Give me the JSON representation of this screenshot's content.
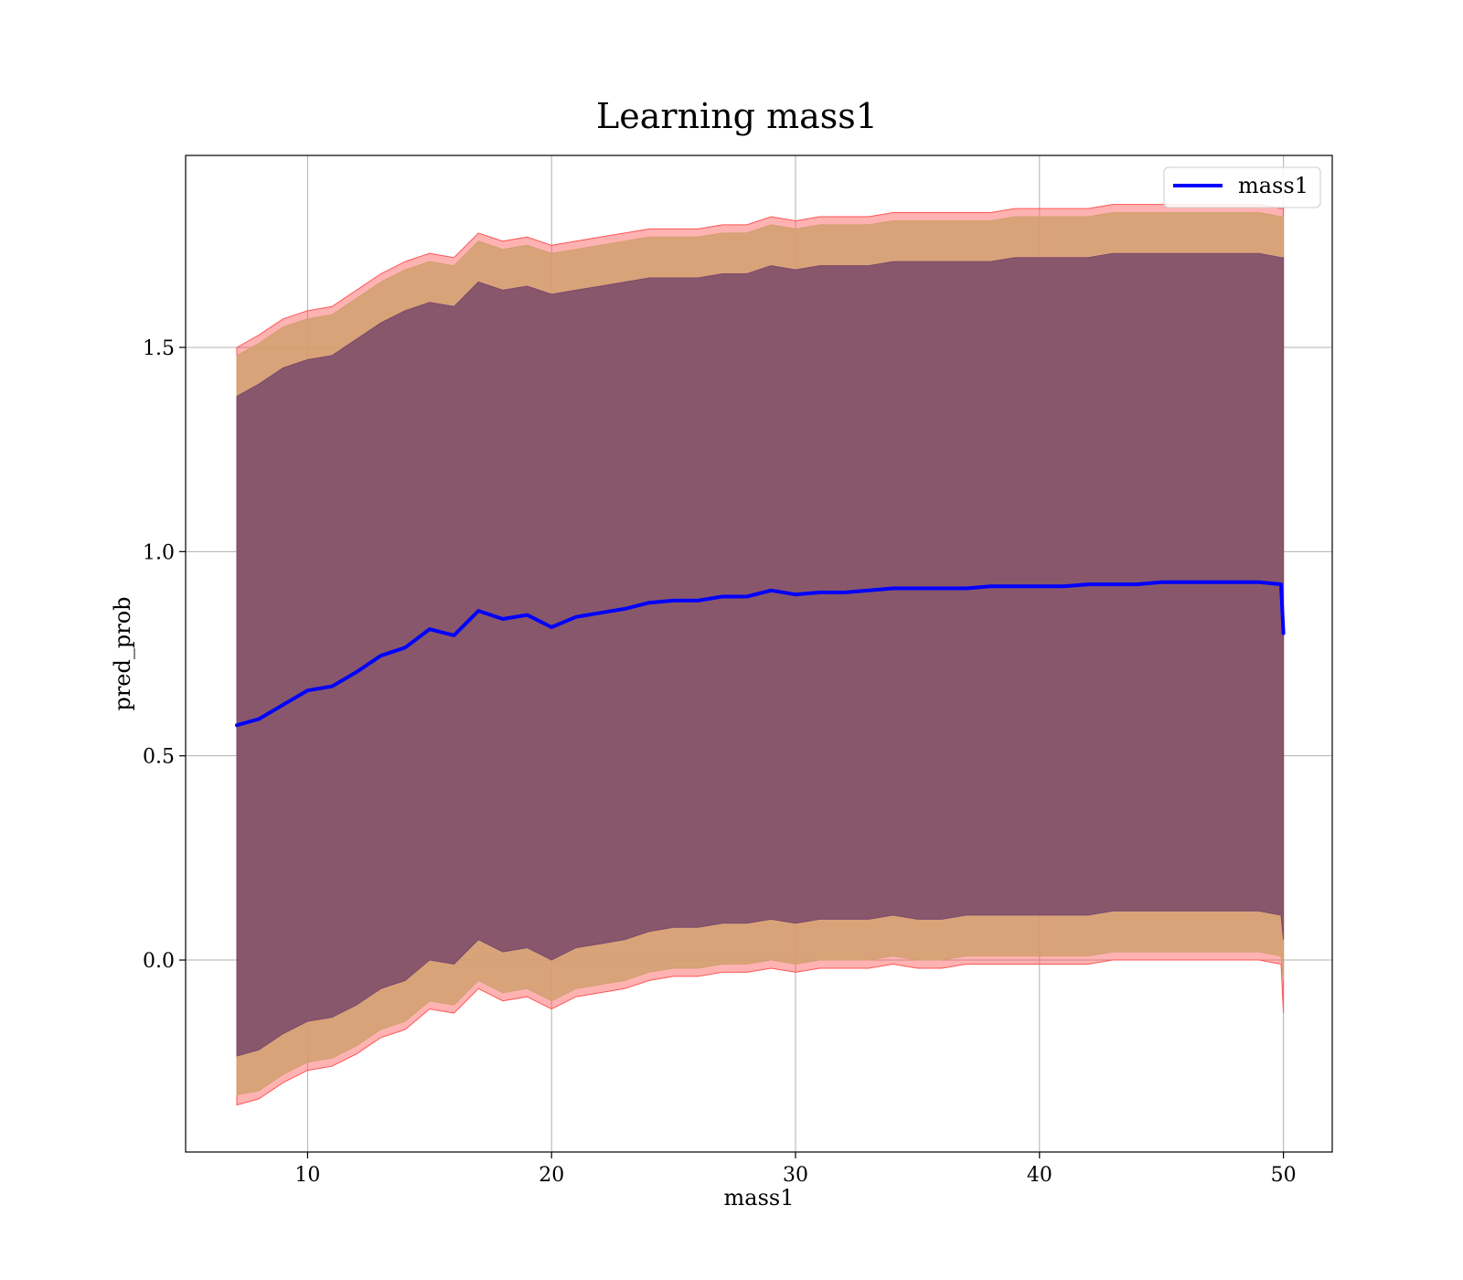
{
  "chart_data": {
    "type": "line",
    "title": "Learning mass1",
    "xlabel": "mass1",
    "ylabel": "pred_prob",
    "xlim": [
      5,
      52
    ],
    "ylim": [
      -0.47,
      1.97
    ],
    "grid": true,
    "legend_position": "upper right",
    "xticks": [
      10,
      20,
      30,
      40,
      50
    ],
    "xtick_labels": [
      "10",
      "20",
      "30",
      "40",
      "50"
    ],
    "yticks": [
      0.0,
      0.5,
      1.0,
      1.5
    ],
    "ytick_labels": [
      "0.0",
      "0.5",
      "1.0",
      "1.5"
    ],
    "x": [
      7.1,
      8,
      9,
      10,
      11,
      12,
      13,
      14,
      15,
      16,
      17,
      18,
      19,
      20,
      21,
      22,
      23,
      24,
      25,
      26,
      27,
      28,
      29,
      30,
      31,
      32,
      33,
      34,
      35,
      36,
      37,
      38,
      39,
      40,
      41,
      42,
      43,
      44,
      45,
      46,
      47,
      48,
      49,
      49.9,
      50
    ],
    "series": [
      {
        "name": "mass1",
        "color": "#0000ff",
        "values": [
          0.575,
          0.59,
          0.625,
          0.66,
          0.67,
          0.705,
          0.745,
          0.765,
          0.81,
          0.795,
          0.855,
          0.835,
          0.845,
          0.815,
          0.84,
          0.85,
          0.86,
          0.875,
          0.88,
          0.88,
          0.89,
          0.89,
          0.905,
          0.895,
          0.9,
          0.9,
          0.905,
          0.91,
          0.91,
          0.91,
          0.91,
          0.915,
          0.915,
          0.915,
          0.915,
          0.92,
          0.92,
          0.92,
          0.925,
          0.925,
          0.925,
          0.925,
          0.925,
          0.92,
          0.8
        ]
      }
    ],
    "bands": [
      {
        "color": "#ff5555",
        "upper": [
          1.5,
          1.53,
          1.57,
          1.59,
          1.6,
          1.64,
          1.68,
          1.71,
          1.73,
          1.72,
          1.78,
          1.76,
          1.77,
          1.75,
          1.76,
          1.77,
          1.78,
          1.79,
          1.79,
          1.79,
          1.8,
          1.8,
          1.82,
          1.81,
          1.82,
          1.82,
          1.82,
          1.83,
          1.83,
          1.83,
          1.83,
          1.83,
          1.84,
          1.84,
          1.84,
          1.84,
          1.85,
          1.85,
          1.85,
          1.85,
          1.85,
          1.85,
          1.85,
          1.84,
          1.84
        ],
        "lower": [
          -0.355,
          -0.34,
          -0.3,
          -0.27,
          -0.26,
          -0.23,
          -0.19,
          -0.17,
          -0.12,
          -0.13,
          -0.07,
          -0.1,
          -0.09,
          -0.12,
          -0.09,
          -0.08,
          -0.07,
          -0.05,
          -0.04,
          -0.04,
          -0.03,
          -0.03,
          -0.02,
          -0.03,
          -0.02,
          -0.02,
          -0.02,
          -0.01,
          -0.02,
          -0.02,
          -0.01,
          -0.01,
          -0.01,
          -0.01,
          -0.01,
          -0.01,
          0.0,
          0.0,
          0.0,
          0.0,
          0.0,
          0.0,
          0.0,
          -0.01,
          -0.13
        ]
      },
      {
        "color": "#d2a070",
        "upper": [
          1.48,
          1.51,
          1.55,
          1.57,
          1.58,
          1.62,
          1.66,
          1.69,
          1.71,
          1.7,
          1.76,
          1.74,
          1.75,
          1.73,
          1.74,
          1.75,
          1.76,
          1.77,
          1.77,
          1.77,
          1.78,
          1.78,
          1.8,
          1.79,
          1.8,
          1.8,
          1.8,
          1.81,
          1.81,
          1.81,
          1.81,
          1.81,
          1.82,
          1.82,
          1.82,
          1.82,
          1.83,
          1.83,
          1.83,
          1.83,
          1.83,
          1.83,
          1.83,
          1.82,
          1.82
        ],
        "lower": [
          -0.33,
          -0.32,
          -0.28,
          -0.25,
          -0.24,
          -0.21,
          -0.17,
          -0.15,
          -0.1,
          -0.11,
          -0.05,
          -0.08,
          -0.07,
          -0.1,
          -0.07,
          -0.06,
          -0.05,
          -0.03,
          -0.02,
          -0.02,
          -0.01,
          -0.01,
          0.0,
          -0.01,
          0.0,
          0.0,
          0.0,
          0.01,
          0.0,
          0.0,
          0.01,
          0.01,
          0.01,
          0.01,
          0.01,
          0.01,
          0.02,
          0.02,
          0.02,
          0.02,
          0.02,
          0.02,
          0.02,
          0.01,
          -0.05
        ]
      },
      {
        "color": "#7a4a6a",
        "upper": [
          1.38,
          1.41,
          1.45,
          1.47,
          1.48,
          1.52,
          1.56,
          1.59,
          1.61,
          1.6,
          1.66,
          1.64,
          1.65,
          1.63,
          1.64,
          1.65,
          1.66,
          1.67,
          1.67,
          1.67,
          1.68,
          1.68,
          1.7,
          1.69,
          1.7,
          1.7,
          1.7,
          1.71,
          1.71,
          1.71,
          1.71,
          1.71,
          1.72,
          1.72,
          1.72,
          1.72,
          1.73,
          1.73,
          1.73,
          1.73,
          1.73,
          1.73,
          1.73,
          1.72,
          1.72
        ],
        "lower": [
          -0.235,
          -0.22,
          -0.18,
          -0.15,
          -0.14,
          -0.11,
          -0.07,
          -0.05,
          0.0,
          -0.01,
          0.05,
          0.02,
          0.03,
          0.0,
          0.03,
          0.04,
          0.05,
          0.07,
          0.08,
          0.08,
          0.09,
          0.09,
          0.1,
          0.09,
          0.1,
          0.1,
          0.1,
          0.11,
          0.1,
          0.1,
          0.11,
          0.11,
          0.11,
          0.11,
          0.11,
          0.11,
          0.12,
          0.12,
          0.12,
          0.12,
          0.12,
          0.12,
          0.12,
          0.11,
          0.05
        ]
      }
    ]
  }
}
